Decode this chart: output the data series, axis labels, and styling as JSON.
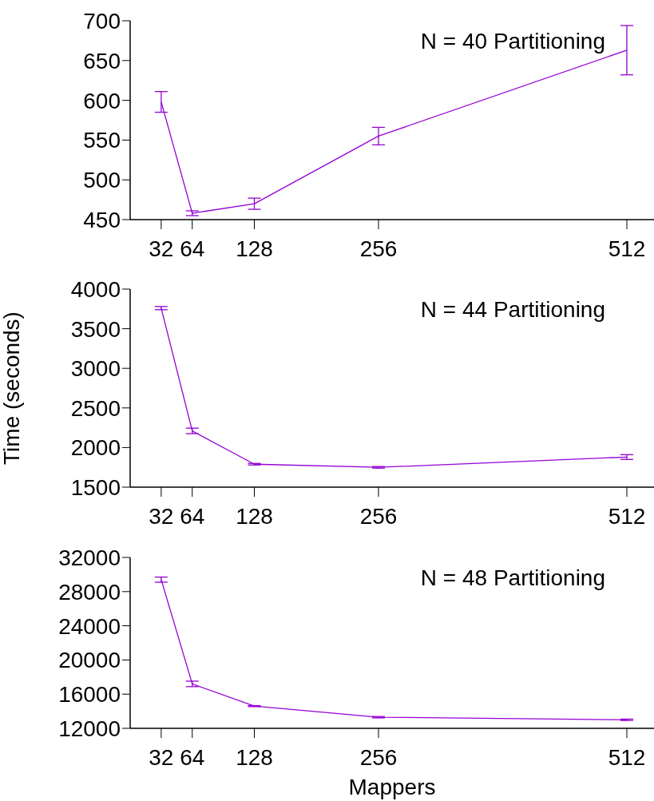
{
  "chart_data": [
    {
      "type": "line",
      "x": [
        32,
        64,
        128,
        256,
        512
      ],
      "xlim": [
        0,
        540
      ],
      "xticks": [
        32,
        64,
        128,
        256,
        512
      ],
      "ylim": [
        450,
        700
      ],
      "yticks": [
        450,
        500,
        550,
        600,
        650,
        700
      ],
      "annotations": [
        "N = 40 Partitioning"
      ],
      "series": [
        {
          "color": "#9400d3",
          "values": [
            598,
            458,
            470,
            555,
            663
          ],
          "errors": [
            13,
            3,
            7,
            11,
            31
          ]
        }
      ]
    },
    {
      "type": "line",
      "x": [
        32,
        64,
        128,
        256,
        512
      ],
      "xlim": [
        0,
        540
      ],
      "xticks": [
        32,
        64,
        128,
        256,
        512
      ],
      "ylim": [
        1500,
        4000
      ],
      "yticks": [
        1500,
        2000,
        2500,
        3000,
        3500,
        4000
      ],
      "ylabel": "Time (seconds)",
      "annotations": [
        "N = 44 Partitioning"
      ],
      "series": [
        {
          "color": "#9400d3",
          "values": [
            3760,
            2210,
            1790,
            1750,
            1880
          ],
          "errors": [
            20,
            35,
            10,
            10,
            30
          ]
        }
      ]
    },
    {
      "type": "line",
      "x": [
        32,
        64,
        128,
        256,
        512
      ],
      "xlim": [
        0,
        540
      ],
      "xticks": [
        32,
        64,
        128,
        256,
        512
      ],
      "ylim": [
        12000,
        32000
      ],
      "yticks": [
        12000,
        16000,
        20000,
        24000,
        28000,
        32000
      ],
      "xlabel": "Mappers",
      "annotations": [
        "N = 48 Partitioning"
      ],
      "series": [
        {
          "color": "#9400d3",
          "values": [
            29400,
            17200,
            14600,
            13300,
            13000
          ],
          "errors": [
            300,
            320,
            60,
            80,
            80
          ]
        }
      ]
    }
  ]
}
